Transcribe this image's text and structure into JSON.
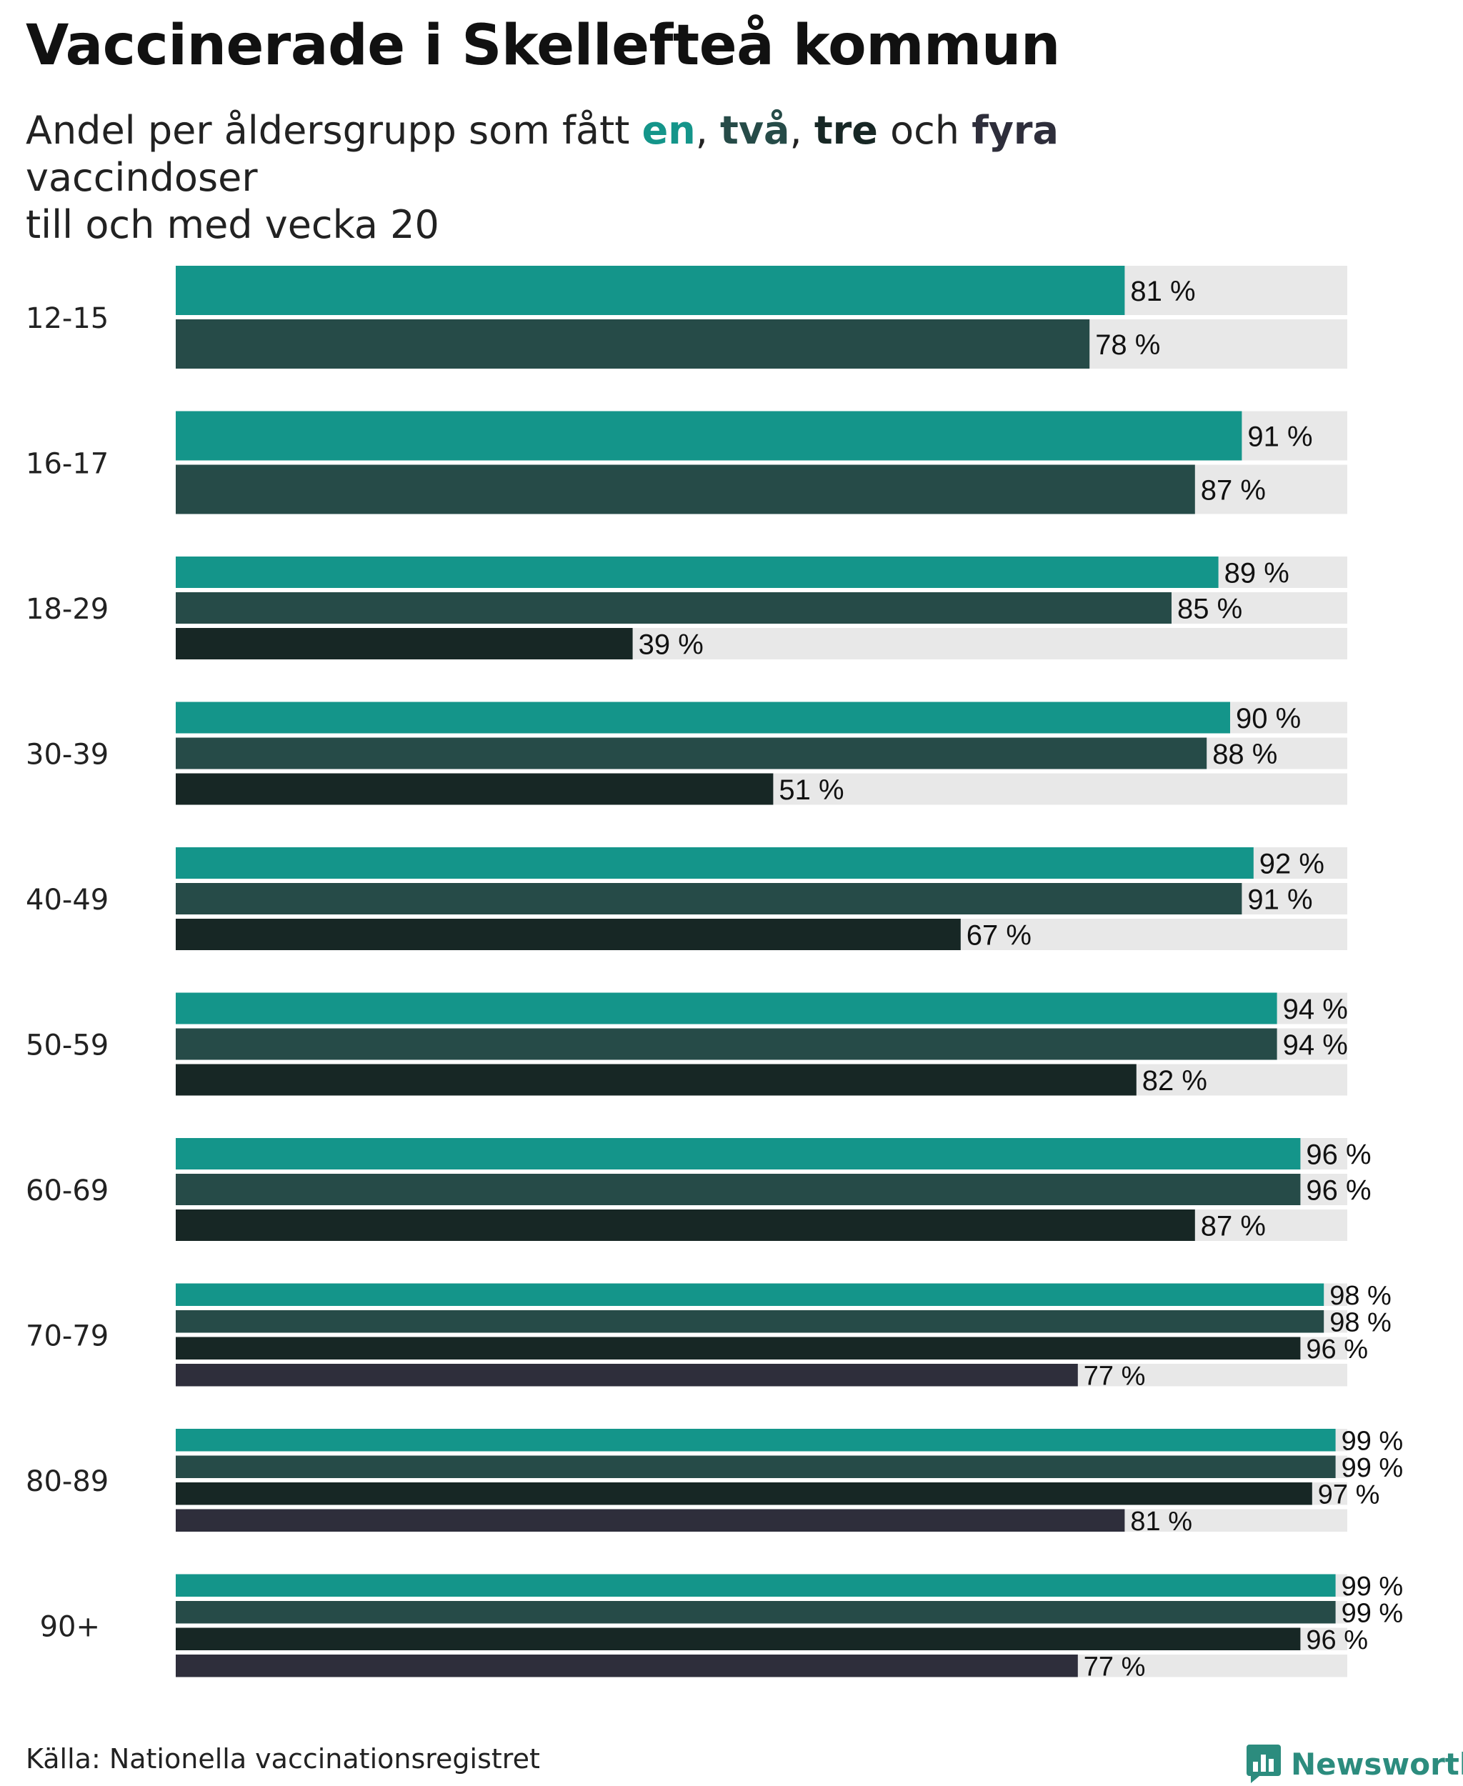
{
  "header": {
    "title": "Vaccinerade i Skellefteå kommun",
    "subtitle_prefix": "Andel per åldersgrupp som fått ",
    "dose1": "en",
    "sep1": ", ",
    "dose2": "två",
    "sep2": ", ",
    "dose3": "tre",
    "sep3": " och ",
    "dose4": "fyra",
    "subtitle_suffix_line1": " vaccindoser",
    "subtitle_line2": "till och med vecka 20"
  },
  "colors": {
    "dose1": "#14958a",
    "dose2": "#264b48",
    "dose3": "#172725",
    "dose4": "#2e2e3b",
    "track": "#e8e8e8"
  },
  "footer": {
    "source": "Källa: Nationella vaccinationsregistret",
    "brand": "Newsworthy"
  },
  "chart_data": {
    "type": "bar",
    "orientation": "horizontal",
    "title": "Vaccinerade i Skellefteå kommun",
    "xlim": [
      0,
      100
    ],
    "unit": "%",
    "categories": [
      "12-15",
      "16-17",
      "18-29",
      "30-39",
      "40-49",
      "50-59",
      "60-69",
      "70-79",
      "80-89",
      "90+"
    ],
    "series": [
      {
        "name": "en",
        "color": "#14958a",
        "values": [
          81,
          91,
          89,
          90,
          92,
          94,
          96,
          98,
          99,
          99
        ]
      },
      {
        "name": "två",
        "color": "#264b48",
        "values": [
          78,
          87,
          85,
          88,
          91,
          94,
          96,
          98,
          99,
          99
        ]
      },
      {
        "name": "tre",
        "color": "#172725",
        "values": [
          null,
          null,
          39,
          51,
          67,
          82,
          87,
          96,
          97,
          96
        ]
      },
      {
        "name": "fyra",
        "color": "#2e2e3b",
        "values": [
          null,
          null,
          null,
          null,
          null,
          null,
          null,
          77,
          81,
          77
        ]
      }
    ],
    "label_format": "{v} %"
  }
}
